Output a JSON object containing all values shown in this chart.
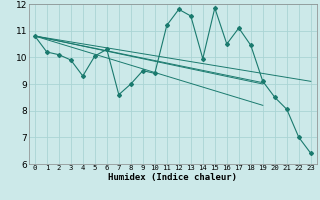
{
  "xlabel": "Humidex (Indice chaleur)",
  "xlim": [
    -0.5,
    23.5
  ],
  "ylim": [
    6,
    12
  ],
  "xticks": [
    0,
    1,
    2,
    3,
    4,
    5,
    6,
    7,
    8,
    9,
    10,
    11,
    12,
    13,
    14,
    15,
    16,
    17,
    18,
    19,
    20,
    21,
    22,
    23
  ],
  "yticks": [
    6,
    7,
    8,
    9,
    10,
    11,
    12
  ],
  "bg_color": "#cce9e9",
  "grid_color": "#aad4d4",
  "line_color": "#1a7a6e",
  "series0": [
    10.8,
    10.2,
    10.1,
    9.9,
    9.3,
    10.05,
    10.3,
    8.6,
    9.0,
    9.5,
    9.4,
    11.2,
    11.8,
    11.55,
    9.95,
    11.85,
    10.5,
    11.1,
    10.45,
    9.1,
    8.5,
    8.05,
    7.0,
    6.4
  ],
  "series1_x": [
    0,
    23
  ],
  "series1_y": [
    10.8,
    9.1
  ],
  "series2_x": [
    0,
    19
  ],
  "series2_y": [
    10.8,
    8.2
  ],
  "series3_x": [
    0,
    19
  ],
  "series3_y": [
    10.8,
    9.0
  ],
  "series4_x": [
    0,
    19
  ],
  "series4_y": [
    10.8,
    9.05
  ]
}
